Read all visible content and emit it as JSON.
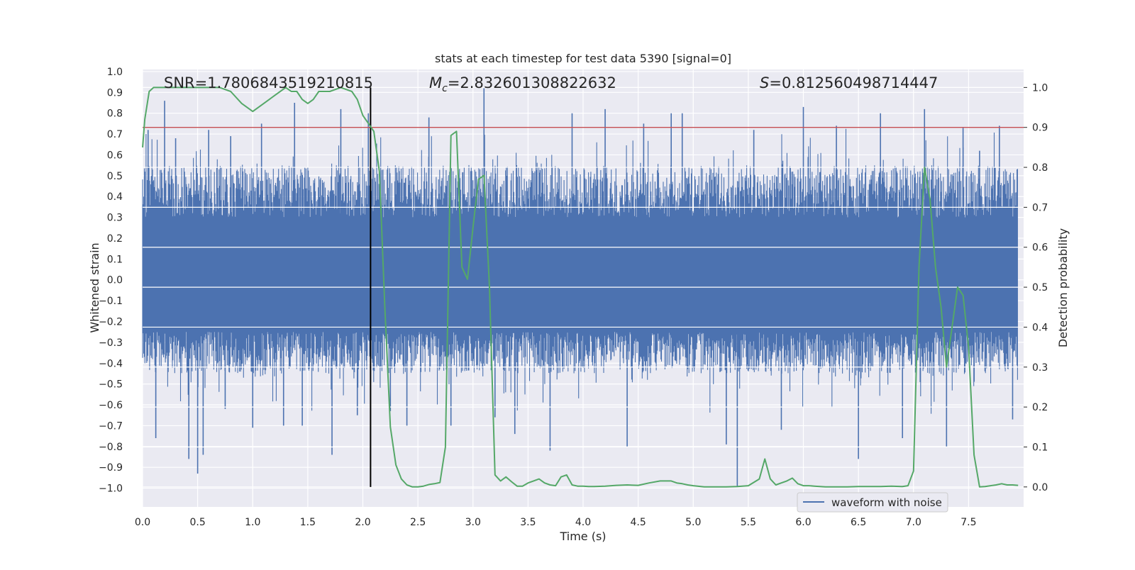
{
  "chart_data": {
    "type": "line",
    "title": "stats at each timestep for test data 5390 [signal=0]",
    "xlabel": "Time (s)",
    "ylabel": "Whitened strain",
    "y2label": "Detection probability",
    "xlim": [
      0.0,
      8.0
    ],
    "ylim": [
      -1.09,
      1.01
    ],
    "y2lim": [
      -0.05,
      1.045
    ],
    "xticks": [
      0.0,
      0.5,
      1.0,
      1.5,
      2.0,
      2.5,
      3.0,
      3.5,
      4.0,
      4.5,
      5.0,
      5.5,
      6.0,
      6.5,
      7.0,
      7.5
    ],
    "xtick_labels": [
      "0.0",
      "0.5",
      "1.0",
      "1.5",
      "2.0",
      "2.5",
      "3.0",
      "3.5",
      "4.0",
      "4.5",
      "5.0",
      "5.5",
      "6.0",
      "6.5",
      "7.0",
      "7.5"
    ],
    "yticks": [
      1.0,
      0.9,
      0.8,
      0.7,
      0.6,
      0.5,
      0.4,
      0.3,
      0.2,
      0.1,
      0.0,
      -0.1,
      -0.2,
      -0.3,
      -0.4,
      -0.5,
      -0.6,
      -0.7,
      -0.8,
      -0.9,
      -1.0
    ],
    "ytick_labels": [
      "1.0",
      "0.9",
      "0.8",
      "0.7",
      "0.6",
      "0.5",
      "0.4",
      "0.3",
      "0.2",
      "0.1",
      "0.0",
      "−0.1",
      "−0.2",
      "−0.3",
      "−0.4",
      "−0.5",
      "−0.6",
      "−0.7",
      "−0.8",
      "−0.9",
      "−1.0"
    ],
    "y2ticks": [
      1.0,
      0.9,
      0.8,
      0.7,
      0.6,
      0.5,
      0.4,
      0.3,
      0.2,
      0.1,
      0.0
    ],
    "y2tick_labels": [
      "1.0",
      "0.9",
      "0.8",
      "0.7",
      "0.6",
      "0.5",
      "0.4",
      "0.3",
      "0.2",
      "0.1",
      "0.0"
    ],
    "annotations": {
      "snr": "SNR=1.7806843519210815",
      "mc_symbol": "M",
      "mc_subscript": "c",
      "mc_value": "=2.832601308822632",
      "s_symbol": "S",
      "s_value": "=0.812560498714447"
    },
    "legend": {
      "label": "waveform with noise",
      "position": "lower-right"
    },
    "threshold_line": {
      "y2": 0.9,
      "color": "#c44e52"
    },
    "marker_line": {
      "x": 2.07,
      "y2_from": 0.0,
      "y2_to": 1.0,
      "color": "#000000"
    },
    "waveform": {
      "name": "waveform with noise",
      "color": "#4c72b0",
      "envelope_typical": [
        -0.45,
        0.55
      ],
      "spikes": [
        {
          "x": 0.05,
          "y": 0.72
        },
        {
          "x": 0.12,
          "y": -0.76
        },
        {
          "x": 0.2,
          "y": 0.86
        },
        {
          "x": 0.3,
          "y": 0.68
        },
        {
          "x": 0.42,
          "y": -0.86
        },
        {
          "x": 0.5,
          "y": -0.93
        },
        {
          "x": 0.55,
          "y": -0.84
        },
        {
          "x": 0.6,
          "y": 0.72
        },
        {
          "x": 0.75,
          "y": -0.62
        },
        {
          "x": 0.8,
          "y": 0.69
        },
        {
          "x": 1.0,
          "y": -0.71
        },
        {
          "x": 1.08,
          "y": 0.75
        },
        {
          "x": 1.28,
          "y": -0.7
        },
        {
          "x": 1.38,
          "y": 0.85
        },
        {
          "x": 1.45,
          "y": -0.7
        },
        {
          "x": 1.72,
          "y": -0.84
        },
        {
          "x": 1.8,
          "y": 0.82
        },
        {
          "x": 1.95,
          "y": -0.65
        },
        {
          "x": 2.05,
          "y": 0.8
        },
        {
          "x": 2.25,
          "y": -0.63
        },
        {
          "x": 2.4,
          "y": -0.7
        },
        {
          "x": 2.6,
          "y": 0.78
        },
        {
          "x": 2.8,
          "y": -0.7
        },
        {
          "x": 3.1,
          "y": 0.92
        },
        {
          "x": 3.2,
          "y": -0.66
        },
        {
          "x": 3.38,
          "y": -0.74
        },
        {
          "x": 3.7,
          "y": -0.82
        },
        {
          "x": 3.9,
          "y": 0.8
        },
        {
          "x": 4.2,
          "y": 0.82
        },
        {
          "x": 4.4,
          "y": -0.8
        },
        {
          "x": 4.55,
          "y": 0.75
        },
        {
          "x": 4.8,
          "y": 0.8
        },
        {
          "x": 4.9,
          "y": 0.8
        },
        {
          "x": 5.3,
          "y": -0.79
        },
        {
          "x": 5.4,
          "y": -0.99
        },
        {
          "x": 5.55,
          "y": 0.72
        },
        {
          "x": 5.8,
          "y": -0.72
        },
        {
          "x": 6.0,
          "y": 0.83
        },
        {
          "x": 6.3,
          "y": 0.74
        },
        {
          "x": 6.5,
          "y": -0.86
        },
        {
          "x": 6.7,
          "y": 0.8
        },
        {
          "x": 6.9,
          "y": -0.76
        },
        {
          "x": 7.1,
          "y": 0.82
        },
        {
          "x": 7.3,
          "y": -0.8
        },
        {
          "x": 7.45,
          "y": 0.73
        },
        {
          "x": 7.6,
          "y": 0.62
        },
        {
          "x": 7.78,
          "y": 0.74
        },
        {
          "x": 7.9,
          "y": -0.67
        }
      ]
    },
    "detection_probability": {
      "name": "detection probability",
      "color": "#55a868",
      "x": [
        0.0,
        0.02,
        0.06,
        0.1,
        0.2,
        0.3,
        0.4,
        0.5,
        0.6,
        0.7,
        0.8,
        0.9,
        1.0,
        1.1,
        1.2,
        1.3,
        1.35,
        1.4,
        1.45,
        1.5,
        1.55,
        1.6,
        1.65,
        1.7,
        1.8,
        1.9,
        1.95,
        2.0,
        2.05,
        2.1,
        2.15,
        2.2,
        2.25,
        2.3,
        2.35,
        2.4,
        2.45,
        2.5,
        2.55,
        2.6,
        2.65,
        2.7,
        2.75,
        2.8,
        2.85,
        2.9,
        2.95,
        3.0,
        3.05,
        3.1,
        3.15,
        3.2,
        3.25,
        3.3,
        3.35,
        3.4,
        3.45,
        3.5,
        3.55,
        3.6,
        3.65,
        3.7,
        3.75,
        3.8,
        3.85,
        3.9,
        3.95,
        4.0,
        4.05,
        4.1,
        4.2,
        4.3,
        4.4,
        4.5,
        4.6,
        4.7,
        4.8,
        4.85,
        4.9,
        4.95,
        5.0,
        5.1,
        5.2,
        5.3,
        5.4,
        5.5,
        5.6,
        5.65,
        5.7,
        5.75,
        5.8,
        5.85,
        5.9,
        5.95,
        6.0,
        6.05,
        6.1,
        6.2,
        6.3,
        6.4,
        6.5,
        6.6,
        6.7,
        6.8,
        6.9,
        6.95,
        7.0,
        7.05,
        7.1,
        7.15,
        7.2,
        7.25,
        7.3,
        7.35,
        7.4,
        7.45,
        7.5,
        7.55,
        7.6,
        7.65,
        7.7,
        7.75,
        7.8,
        7.85,
        7.9,
        7.95
      ],
      "y": [
        0.85,
        0.92,
        0.99,
        1.0,
        1.0,
        1.0,
        1.0,
        1.0,
        1.0,
        1.0,
        0.99,
        0.96,
        0.94,
        0.96,
        0.98,
        1.0,
        0.99,
        0.99,
        0.97,
        0.96,
        0.97,
        0.99,
        0.99,
        0.99,
        1.0,
        0.99,
        0.97,
        0.93,
        0.91,
        0.89,
        0.79,
        0.45,
        0.15,
        0.055,
        0.02,
        0.005,
        0.0,
        0.0,
        0.002,
        0.006,
        0.008,
        0.011,
        0.1,
        0.88,
        0.89,
        0.55,
        0.52,
        0.65,
        0.77,
        0.78,
        0.5,
        0.03,
        0.015,
        0.025,
        0.013,
        0.002,
        0.002,
        0.01,
        0.015,
        0.02,
        0.01,
        0.005,
        0.003,
        0.025,
        0.03,
        0.005,
        0.002,
        0.002,
        0.001,
        0.001,
        0.002,
        0.004,
        0.005,
        0.004,
        0.01,
        0.015,
        0.015,
        0.01,
        0.008,
        0.005,
        0.003,
        0.0,
        0.0,
        0.0,
        0.001,
        0.003,
        0.02,
        0.07,
        0.02,
        0.005,
        0.01,
        0.015,
        0.022,
        0.008,
        0.003,
        0.003,
        0.002,
        0.0,
        0.0,
        0.0,
        0.001,
        0.001,
        0.001,
        0.002,
        0.001,
        0.003,
        0.04,
        0.55,
        0.8,
        0.72,
        0.55,
        0.45,
        0.3,
        0.4,
        0.5,
        0.48,
        0.35,
        0.08,
        0.0,
        0.001,
        0.003,
        0.005,
        0.008,
        0.005,
        0.005,
        0.004
      ]
    }
  }
}
